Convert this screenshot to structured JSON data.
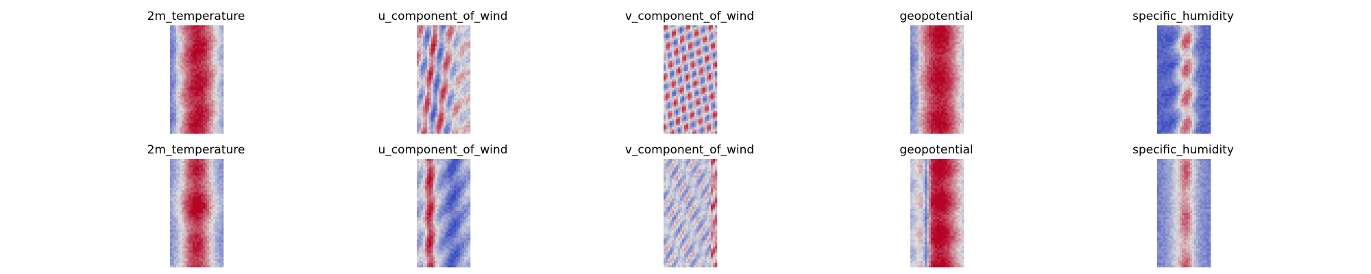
{
  "figure": {
    "rows": [
      {
        "panels": [
          {
            "title": "2m_temperature",
            "pattern": "temp_a"
          },
          {
            "title": "u_component_of_wind",
            "pattern": "uwind_a"
          },
          {
            "title": "v_component_of_wind",
            "pattern": "vwind_a"
          },
          {
            "title": "geopotential",
            "pattern": "geo_a"
          },
          {
            "title": "specific_humidity",
            "pattern": "hum_a"
          }
        ]
      },
      {
        "panels": [
          {
            "title": "2m_temperature",
            "pattern": "temp_b"
          },
          {
            "title": "u_component_of_wind",
            "pattern": "uwind_b"
          },
          {
            "title": "v_component_of_wind",
            "pattern": "vwind_b"
          },
          {
            "title": "geopotential",
            "pattern": "geo_b"
          },
          {
            "title": "specific_humidity",
            "pattern": "hum_b"
          }
        ]
      }
    ]
  },
  "chart_data": {
    "type": "heatmap",
    "colormap": "coolwarm",
    "colormap_stops": [
      "#3b4cc0",
      "#dddddd",
      "#b40426"
    ],
    "axes": "off",
    "panels": [
      {
        "row": 1,
        "col": 1,
        "title": "2m_temperature"
      },
      {
        "row": 1,
        "col": 2,
        "title": "u_component_of_wind"
      },
      {
        "row": 1,
        "col": 3,
        "title": "v_component_of_wind"
      },
      {
        "row": 1,
        "col": 4,
        "title": "geopotential"
      },
      {
        "row": 1,
        "col": 5,
        "title": "specific_humidity"
      },
      {
        "row": 2,
        "col": 1,
        "title": "2m_temperature"
      },
      {
        "row": 2,
        "col": 2,
        "title": "u_component_of_wind"
      },
      {
        "row": 2,
        "col": 3,
        "title": "v_component_of_wind"
      },
      {
        "row": 2,
        "col": 4,
        "title": "geopotential"
      },
      {
        "row": 2,
        "col": 5,
        "title": "specific_humidity"
      }
    ]
  }
}
